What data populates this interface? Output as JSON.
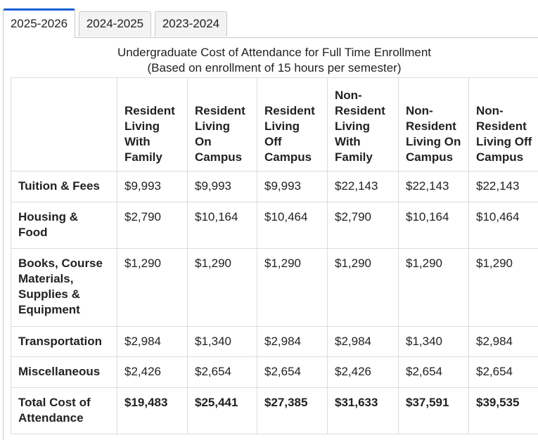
{
  "tabs": [
    {
      "label": "2025-2026",
      "active": true
    },
    {
      "label": "2024-2025",
      "active": false
    },
    {
      "label": "2023-2024",
      "active": false
    }
  ],
  "caption": {
    "line1": "Undergraduate Cost of Attendance for Full Time Enrollment",
    "line2": "(Based on enrollment of 15 hours per semester)"
  },
  "table": {
    "columns": [
      "Resident Living With Family",
      "Resident Living On Campus",
      "Resident Living Off Campus",
      "Non-Resident Living With Family",
      "Non-Resident Living On Campus",
      "Non-Resident Living Off Campus"
    ],
    "rows": [
      {
        "label": "Tuition & Fees",
        "values": [
          "$9,993",
          "$9,993",
          "$9,993",
          "$22,143",
          "$22,143",
          "$22,143"
        ]
      },
      {
        "label": "Housing & Food",
        "values": [
          "$2,790",
          "$10,164",
          "$10,464",
          "$2,790",
          "$10,164",
          "$10,464"
        ]
      },
      {
        "label": "Books, Course Materials, Supplies & Equipment",
        "values": [
          "$1,290",
          "$1,290",
          "$1,290",
          "$1,290",
          "$1,290",
          "$1,290"
        ]
      },
      {
        "label": "Transportation",
        "values": [
          "$2,984",
          "$1,340",
          "$2,984",
          "$2,984",
          "$1,340",
          "$2,984"
        ]
      },
      {
        "label": "Miscellaneous",
        "values": [
          "$2,426",
          "$2,654",
          "$2,654",
          "$2,426",
          "$2,654",
          "$2,654"
        ]
      },
      {
        "label": "Total Cost of Attendance",
        "values": [
          "$19,483",
          "$25,441",
          "$27,385",
          "$31,633",
          "$37,591",
          "$39,535"
        ]
      }
    ]
  }
}
